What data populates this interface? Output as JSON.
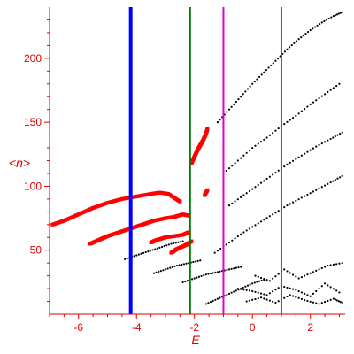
{
  "chart_data": {
    "type": "scatter",
    "title": "",
    "xlabel": "E",
    "ylabel": "<n>",
    "xlim": [
      -7.0,
      3.2
    ],
    "ylim": [
      0,
      240
    ],
    "x_ticks": [
      -6,
      -4,
      -2,
      0,
      2
    ],
    "y_ticks": [
      50,
      100,
      150,
      200
    ],
    "grid": false,
    "legend": "none",
    "axis_color": "#e00000",
    "vertical_lines": [
      {
        "x": -4.2,
        "color": "#0000ff",
        "width": "thick"
      },
      {
        "x": -2.15,
        "color": "#008000",
        "width": "normal"
      },
      {
        "x": -1.0,
        "color": "#dd00dd",
        "width": "normal"
      },
      {
        "x": 1.0,
        "color": "#dd00dd",
        "width": "normal"
      }
    ],
    "series": [
      {
        "color": "#ff0000",
        "marker": "square",
        "branches": [
          {
            "x": [
              -6.9,
              -6.5,
              -6.0,
              -5.5,
              -5.0,
              -4.5,
              -4.0,
              -3.5,
              -3.2,
              -2.9,
              -2.5
            ],
            "y": [
              70,
              73,
              78,
              83,
              87,
              90,
              92,
              94,
              95,
              94,
              88
            ]
          },
          {
            "x": [
              -5.6,
              -5.3,
              -5.0,
              -4.6,
              -4.2,
              -3.8,
              -3.4,
              -3.0,
              -2.7,
              -2.4,
              -2.2
            ],
            "y": [
              55,
              58,
              61,
              64,
              67,
              70,
              73,
              75,
              76,
              78,
              77
            ]
          },
          {
            "x": [
              -2.1,
              -2.0,
              -1.9,
              -1.8,
              -1.7,
              -1.6,
              -1.55
            ],
            "y": [
              118,
              123,
              128,
              132,
              136,
              141,
              145
            ]
          },
          {
            "x": [
              -3.5,
              -3.3,
              -3.0,
              -2.7,
              -2.4,
              -2.2
            ],
            "y": [
              56,
              58,
              60,
              61,
              62,
              64
            ]
          },
          {
            "x": [
              -2.8,
              -2.6,
              -2.3,
              -2.1
            ],
            "y": [
              48,
              51,
              54,
              57
            ]
          },
          {
            "x": [
              -1.65,
              -1.55
            ],
            "y": [
              93,
              97
            ]
          }
        ]
      },
      {
        "color": "#000000",
        "marker": "dot",
        "branches": [
          {
            "x": [
              -1.2,
              -0.8,
              -0.4,
              0.0,
              0.4,
              0.8,
              1.2,
              1.6,
              2.0,
              2.4,
              2.8,
              3.1
            ],
            "y": [
              150,
              160,
              170,
              180,
              189,
              198,
              207,
              215,
              222,
              228,
              233,
              236
            ]
          },
          {
            "x": [
              -1.0,
              -0.5,
              0.0,
              0.5,
              1.0,
              1.5,
              2.0,
              2.5,
              3.0
            ],
            "y": [
              110,
              120,
              130,
              138,
              147,
              155,
              164,
              172,
              180
            ]
          },
          {
            "x": [
              -0.8,
              -0.3,
              0.2,
              0.7,
              1.2,
              1.7,
              2.2,
              2.7,
              3.1
            ],
            "y": [
              85,
              93,
              101,
              109,
              117,
              124,
              131,
              137,
              142
            ]
          },
          {
            "x": [
              -1.3,
              -0.8,
              -0.3,
              0.2,
              0.7,
              1.2,
              1.7,
              2.2,
              2.7,
              3.1
            ],
            "y": [
              48,
              56,
              64,
              71,
              78,
              85,
              91,
              97,
              103,
              108
            ]
          },
          {
            "x": [
              -4.4,
              -4.0,
              -3.6,
              -3.2,
              -2.8,
              -2.4
            ],
            "y": [
              43,
              46,
              49,
              52,
              55,
              57
            ]
          },
          {
            "x": [
              -3.4,
              -3.0,
              -2.6,
              -2.2,
              -1.8
            ],
            "y": [
              32,
              35,
              38,
              40,
              42
            ]
          },
          {
            "x": [
              -2.4,
              -2.0,
              -1.6,
              -1.2,
              -0.8,
              -0.4
            ],
            "y": [
              25,
              28,
              31,
              33,
              35,
              37
            ]
          },
          {
            "x": [
              -1.6,
              -1.2,
              -0.8,
              -0.4,
              0.0,
              0.4
            ],
            "y": [
              8,
              12,
              16,
              20,
              24,
              27
            ]
          },
          {
            "x": [
              -0.5,
              0.0,
              0.5,
              1.0,
              1.5,
              2.0,
              2.5,
              3.0
            ],
            "y": [
              20,
              18,
              15,
              22,
              19,
              14,
              24,
              17
            ]
          },
          {
            "x": [
              -0.2,
              0.3,
              0.8,
              1.3,
              1.8,
              2.3,
              2.8,
              3.1
            ],
            "y": [
              10,
              13,
              9,
              15,
              11,
              8,
              12,
              9
            ]
          },
          {
            "x": [
              0.1,
              0.6,
              1.1,
              1.6,
              2.1,
              2.6,
              3.1
            ],
            "y": [
              30,
              26,
              35,
              28,
              33,
              38,
              40
            ]
          }
        ]
      }
    ]
  }
}
